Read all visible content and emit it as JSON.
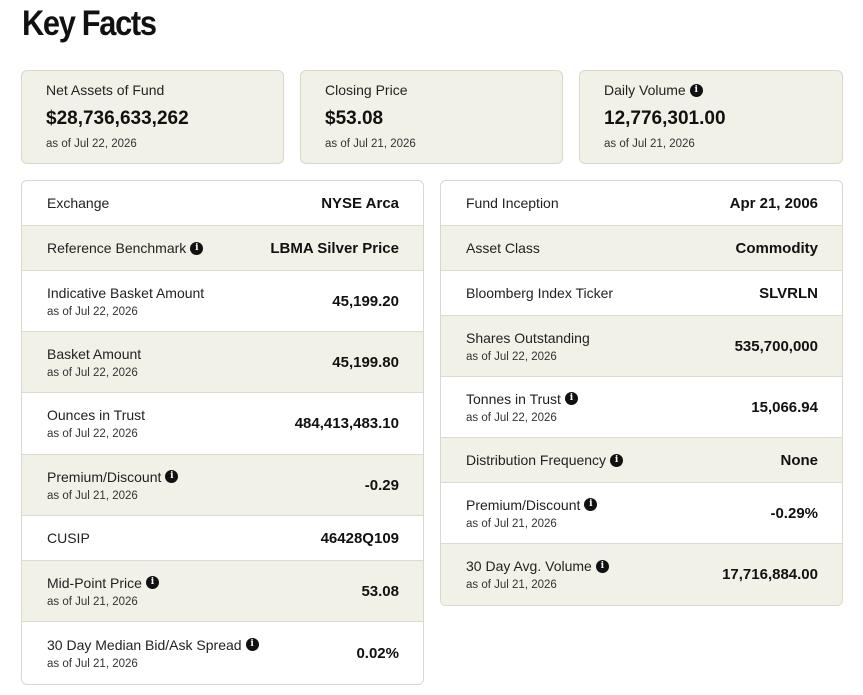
{
  "page": {
    "title": "Key Facts"
  },
  "cards": [
    {
      "label": "Net Assets of Fund",
      "value": "$28,736,633,262",
      "as_of": "as of Jul 22, 2026",
      "info": false
    },
    {
      "label": "Closing Price",
      "value": "$53.08",
      "as_of": "as of Jul 21, 2026",
      "info": false
    },
    {
      "label": "Daily Volume",
      "value": "12,776,301.00",
      "as_of": "as of Jul 21, 2026",
      "info": true
    }
  ],
  "left_table": [
    {
      "label": "Exchange",
      "value": "NYSE Arca",
      "as_of": "",
      "info": false
    },
    {
      "label": "Reference Benchmark",
      "value": "LBMA Silver Price",
      "as_of": "",
      "info": true
    },
    {
      "label": "Indicative Basket Amount",
      "value": "45,199.20",
      "as_of": "as of Jul 22, 2026",
      "info": false
    },
    {
      "label": "Basket Amount",
      "value": "45,199.80",
      "as_of": "as of Jul 22, 2026",
      "info": false
    },
    {
      "label": "Ounces in Trust",
      "value": "484,413,483.10",
      "as_of": "as of Jul 22, 2026",
      "info": false
    },
    {
      "label": "Premium/Discount",
      "value": "-0.29",
      "as_of": "as of Jul 21, 2026",
      "info": true
    },
    {
      "label": "CUSIP",
      "value": "46428Q109",
      "as_of": "",
      "info": false
    },
    {
      "label": "Mid-Point Price",
      "value": "53.08",
      "as_of": "as of Jul 21, 2026",
      "info": true
    },
    {
      "label": "30 Day Median Bid/Ask Spread",
      "value": "0.02%",
      "as_of": "as of Jul 21, 2026",
      "info": true
    }
  ],
  "right_table": [
    {
      "label": "Fund Inception",
      "value": "Apr 21, 2006",
      "as_of": "",
      "info": false
    },
    {
      "label": "Asset Class",
      "value": "Commodity",
      "as_of": "",
      "info": false
    },
    {
      "label": "Bloomberg Index Ticker",
      "value": "SLVRLN",
      "as_of": "",
      "info": false
    },
    {
      "label": "Shares Outstanding",
      "value": "535,700,000",
      "as_of": "as of Jul 22, 2026",
      "info": false
    },
    {
      "label": "Tonnes in Trust",
      "value": "15,066.94",
      "as_of": "as of Jul 22, 2026",
      "info": true
    },
    {
      "label": "Distribution Frequency",
      "value": "None",
      "as_of": "",
      "info": true
    },
    {
      "label": "Premium/Discount",
      "value": "-0.29%",
      "as_of": "as of Jul 21, 2026",
      "info": true
    },
    {
      "label": "30 Day Avg. Volume",
      "value": "17,716,884.00",
      "as_of": "as of Jul 21, 2026",
      "info": true
    }
  ],
  "icons": {
    "info": "info-icon"
  },
  "colors": {
    "shade": "#f2f1e8",
    "border": "#d9d8cc",
    "text": "#111111"
  }
}
